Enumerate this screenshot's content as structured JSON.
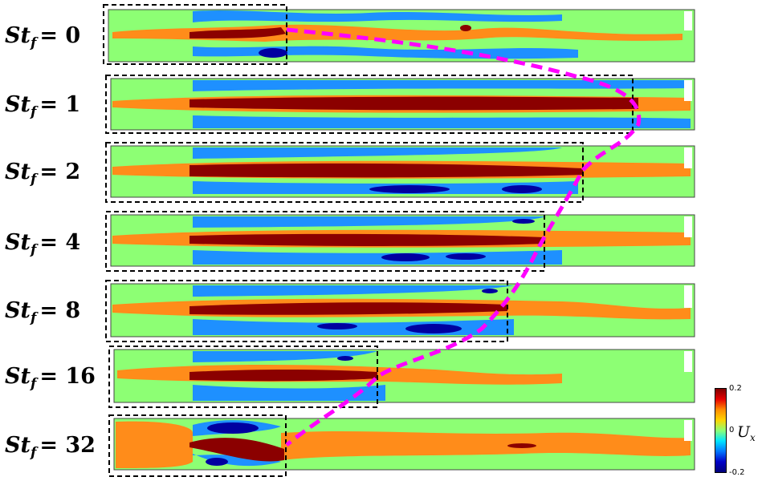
{
  "rows": [
    {
      "st_symbol": "St",
      "subscript": "f",
      "value": "0"
    },
    {
      "st_symbol": "St",
      "subscript": "f",
      "value": "1"
    },
    {
      "st_symbol": "St",
      "subscript": "f",
      "value": "2"
    },
    {
      "st_symbol": "St",
      "subscript": "f",
      "value": "4"
    },
    {
      "st_symbol": "St",
      "subscript": "f",
      "value": "8"
    },
    {
      "st_symbol": "St",
      "subscript": "f",
      "value": "16"
    },
    {
      "st_symbol": "St",
      "subscript": "f",
      "value": "32"
    }
  ],
  "equals_sign": "=",
  "colorbar": {
    "symbol": "U",
    "subscript": "x",
    "max_label": "0.2",
    "mid_label": "0",
    "min_label": "-0.2"
  },
  "colors": {
    "background_field": "#8dff74",
    "positive_core": "#8b0000",
    "positive_shell": "#ff8c1a",
    "negative_light": "#1e90ff",
    "negative_deep": "#0000a0",
    "trend_line": "#ff00ff",
    "box_outline": "#000000"
  }
}
